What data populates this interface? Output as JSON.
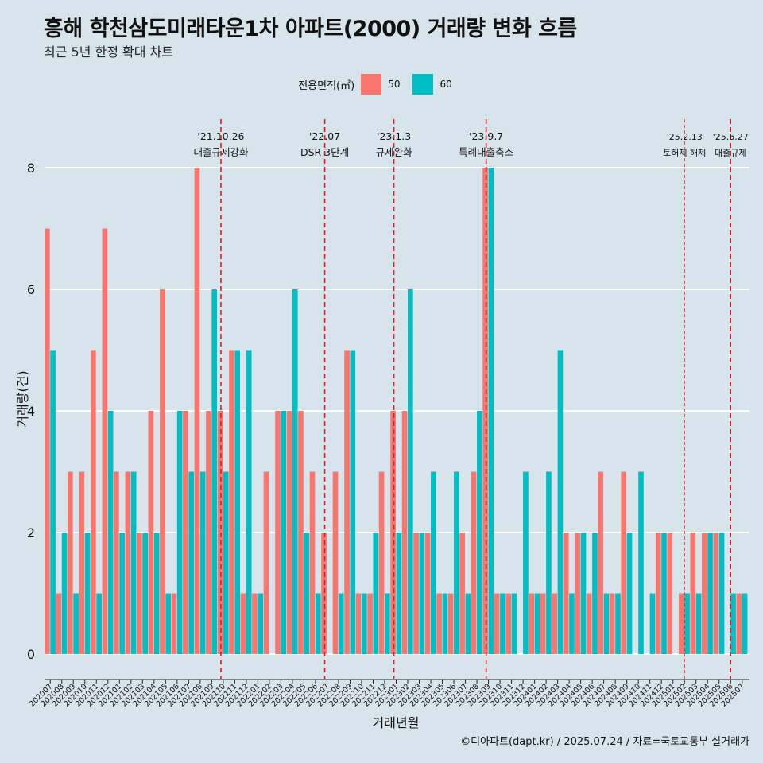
{
  "title": "흥해 학천삼도미래타운1차 아파트(2000) 거래량 변화 흐름",
  "subtitle": "최근 5년 한정 확대 차트",
  "caption": "©디아파트(dapt.kr) / 2025.07.24 / 자료=국토교통부 실거래가",
  "legend": {
    "title": "전용면적(㎡)"
  },
  "colors": {
    "s50": "#f8766d",
    "s60": "#00bfc4",
    "event": "#e41a1c",
    "grid": "#ffffff",
    "bg": "#d7e4ec"
  },
  "chart_data": {
    "type": "bar",
    "title": "흥해 학천삼도미래타운1차 아파트(2000) 거래량 변화 흐름",
    "xlabel": "거래년월",
    "ylabel": "거래량(건)",
    "ylim": [
      0,
      8
    ],
    "yticks": [
      0,
      2,
      4,
      6,
      8
    ],
    "categories": [
      "202007",
      "202008",
      "202009",
      "202010",
      "202011",
      "202012",
      "202101",
      "202102",
      "202103",
      "202104",
      "202105",
      "202106",
      "202107",
      "202108",
      "202109",
      "202110",
      "202111",
      "202112",
      "202201",
      "202202",
      "202203",
      "202204",
      "202205",
      "202206",
      "202207",
      "202208",
      "202209",
      "202210",
      "202211",
      "202212",
      "202301",
      "202302",
      "202303",
      "202304",
      "202305",
      "202306",
      "202307",
      "202308",
      "202309",
      "202310",
      "202311",
      "202312",
      "202401",
      "202402",
      "202403",
      "202404",
      "202405",
      "202406",
      "202407",
      "202408",
      "202409",
      "202410",
      "202411",
      "202412",
      "202501",
      "202502",
      "202503",
      "202504",
      "202505",
      "202506",
      "202507"
    ],
    "series": [
      {
        "name": "50",
        "values": [
          7,
          1,
          3,
          3,
          5,
          7,
          3,
          3,
          2,
          4,
          6,
          1,
          4,
          8,
          4,
          4,
          5,
          1,
          1,
          3,
          4,
          4,
          4,
          3,
          2,
          3,
          5,
          1,
          1,
          3,
          4,
          4,
          2,
          2,
          1,
          1,
          2,
          3,
          8,
          1,
          1,
          0,
          1,
          1,
          1,
          2,
          2,
          1,
          3,
          1,
          3,
          0,
          0,
          2,
          2,
          1,
          2,
          2,
          2,
          0,
          1
        ]
      },
      {
        "name": "60",
        "values": [
          5,
          2,
          1,
          2,
          1,
          4,
          2,
          3,
          2,
          2,
          1,
          4,
          3,
          3,
          6,
          3,
          5,
          5,
          1,
          0,
          4,
          6,
          2,
          1,
          0,
          1,
          5,
          1,
          2,
          1,
          2,
          6,
          2,
          3,
          1,
          3,
          1,
          4,
          8,
          1,
          1,
          3,
          1,
          3,
          5,
          1,
          2,
          2,
          1,
          1,
          2,
          3,
          1,
          2,
          0,
          1,
          1,
          2,
          2,
          1,
          1
        ]
      }
    ],
    "events": [
      {
        "date": "'21.10.26",
        "label": "대출규제강화",
        "index": 15.3,
        "style": "dashed"
      },
      {
        "date": "'22.07",
        "label": "DSR 3단계",
        "index": 24.3,
        "style": "dashed"
      },
      {
        "date": "'23.1.3",
        "label": "규제완화",
        "index": 30.3,
        "style": "dashed"
      },
      {
        "date": "'23.9.7",
        "label": "특례대출축소",
        "index": 38.3,
        "style": "dashed"
      },
      {
        "date": "'25.2.13",
        "label": "토허제 해제",
        "index": 55.5,
        "style": "thin"
      },
      {
        "date": "'25.6.27",
        "label": "대출규제",
        "index": 59.5,
        "style": "dashed"
      }
    ]
  }
}
